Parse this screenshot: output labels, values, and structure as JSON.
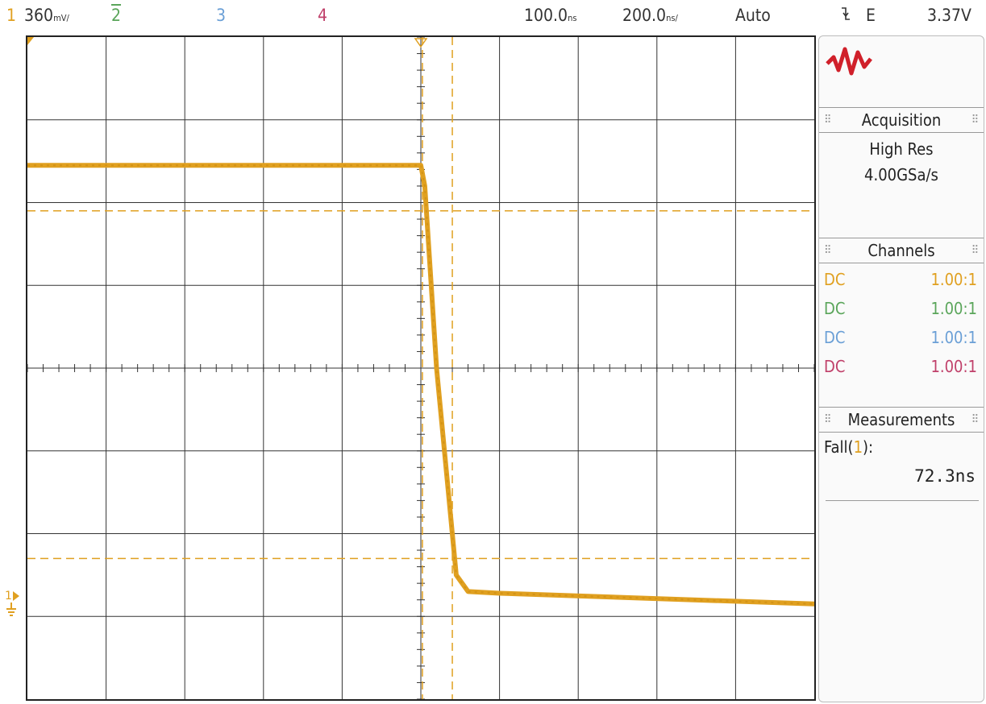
{
  "topbar": {
    "ch1_num": "1",
    "ch1_scale": "360",
    "ch1_scale_unit": "mV/",
    "ch2_num": "2",
    "ch3_num": "3",
    "ch4_num": "4",
    "time_pos": "100.0",
    "time_pos_unit": "ns",
    "time_scale": "200.0",
    "time_scale_unit": "ns/",
    "trigger_mode": "Auto",
    "trigger_slope_icon": "falling-edge-icon",
    "trigger_source": "E",
    "trigger_level": "3.37V"
  },
  "panel": {
    "logo_icon": "waveform-logo-icon",
    "acquisition": {
      "title": "Acquisition",
      "mode": "High Res",
      "rate": "4.00GSa/s"
    },
    "channels": {
      "title": "Channels",
      "rows": [
        {
          "coupling": "DC",
          "ratio": "1.00:1",
          "color": "#e0a020"
        },
        {
          "coupling": "DC",
          "ratio": "1.00:1",
          "color": "#5aa55a"
        },
        {
          "coupling": "DC",
          "ratio": "1.00:1",
          "color": "#6a9fd6"
        },
        {
          "coupling": "DC",
          "ratio": "1.00:1",
          "color": "#c0406a"
        }
      ]
    },
    "measurements": {
      "title": "Measurements",
      "label_prefix": "Fall(",
      "label_channel": "1",
      "label_suffix": "):",
      "value": "72.3ns"
    }
  },
  "chart_data": {
    "type": "line",
    "grid": {
      "h_divisions": 10,
      "v_divisions": 8
    },
    "series": [
      {
        "color": "#e0a020",
        "x_divisions": [
          0,
          5.0,
          5.05,
          5.2,
          5.45,
          5.6,
          6.0,
          10
        ],
        "y_divisions": [
          2.45,
          2.45,
          2.2,
          0.0,
          -2.5,
          -2.7,
          -2.72,
          -2.85
        ]
      }
    ],
    "markers": {
      "upper_threshold_div": 1.9,
      "lower_threshold_div": -2.3,
      "fall_start_div": 5.02,
      "fall_end_div": 5.4
    }
  }
}
